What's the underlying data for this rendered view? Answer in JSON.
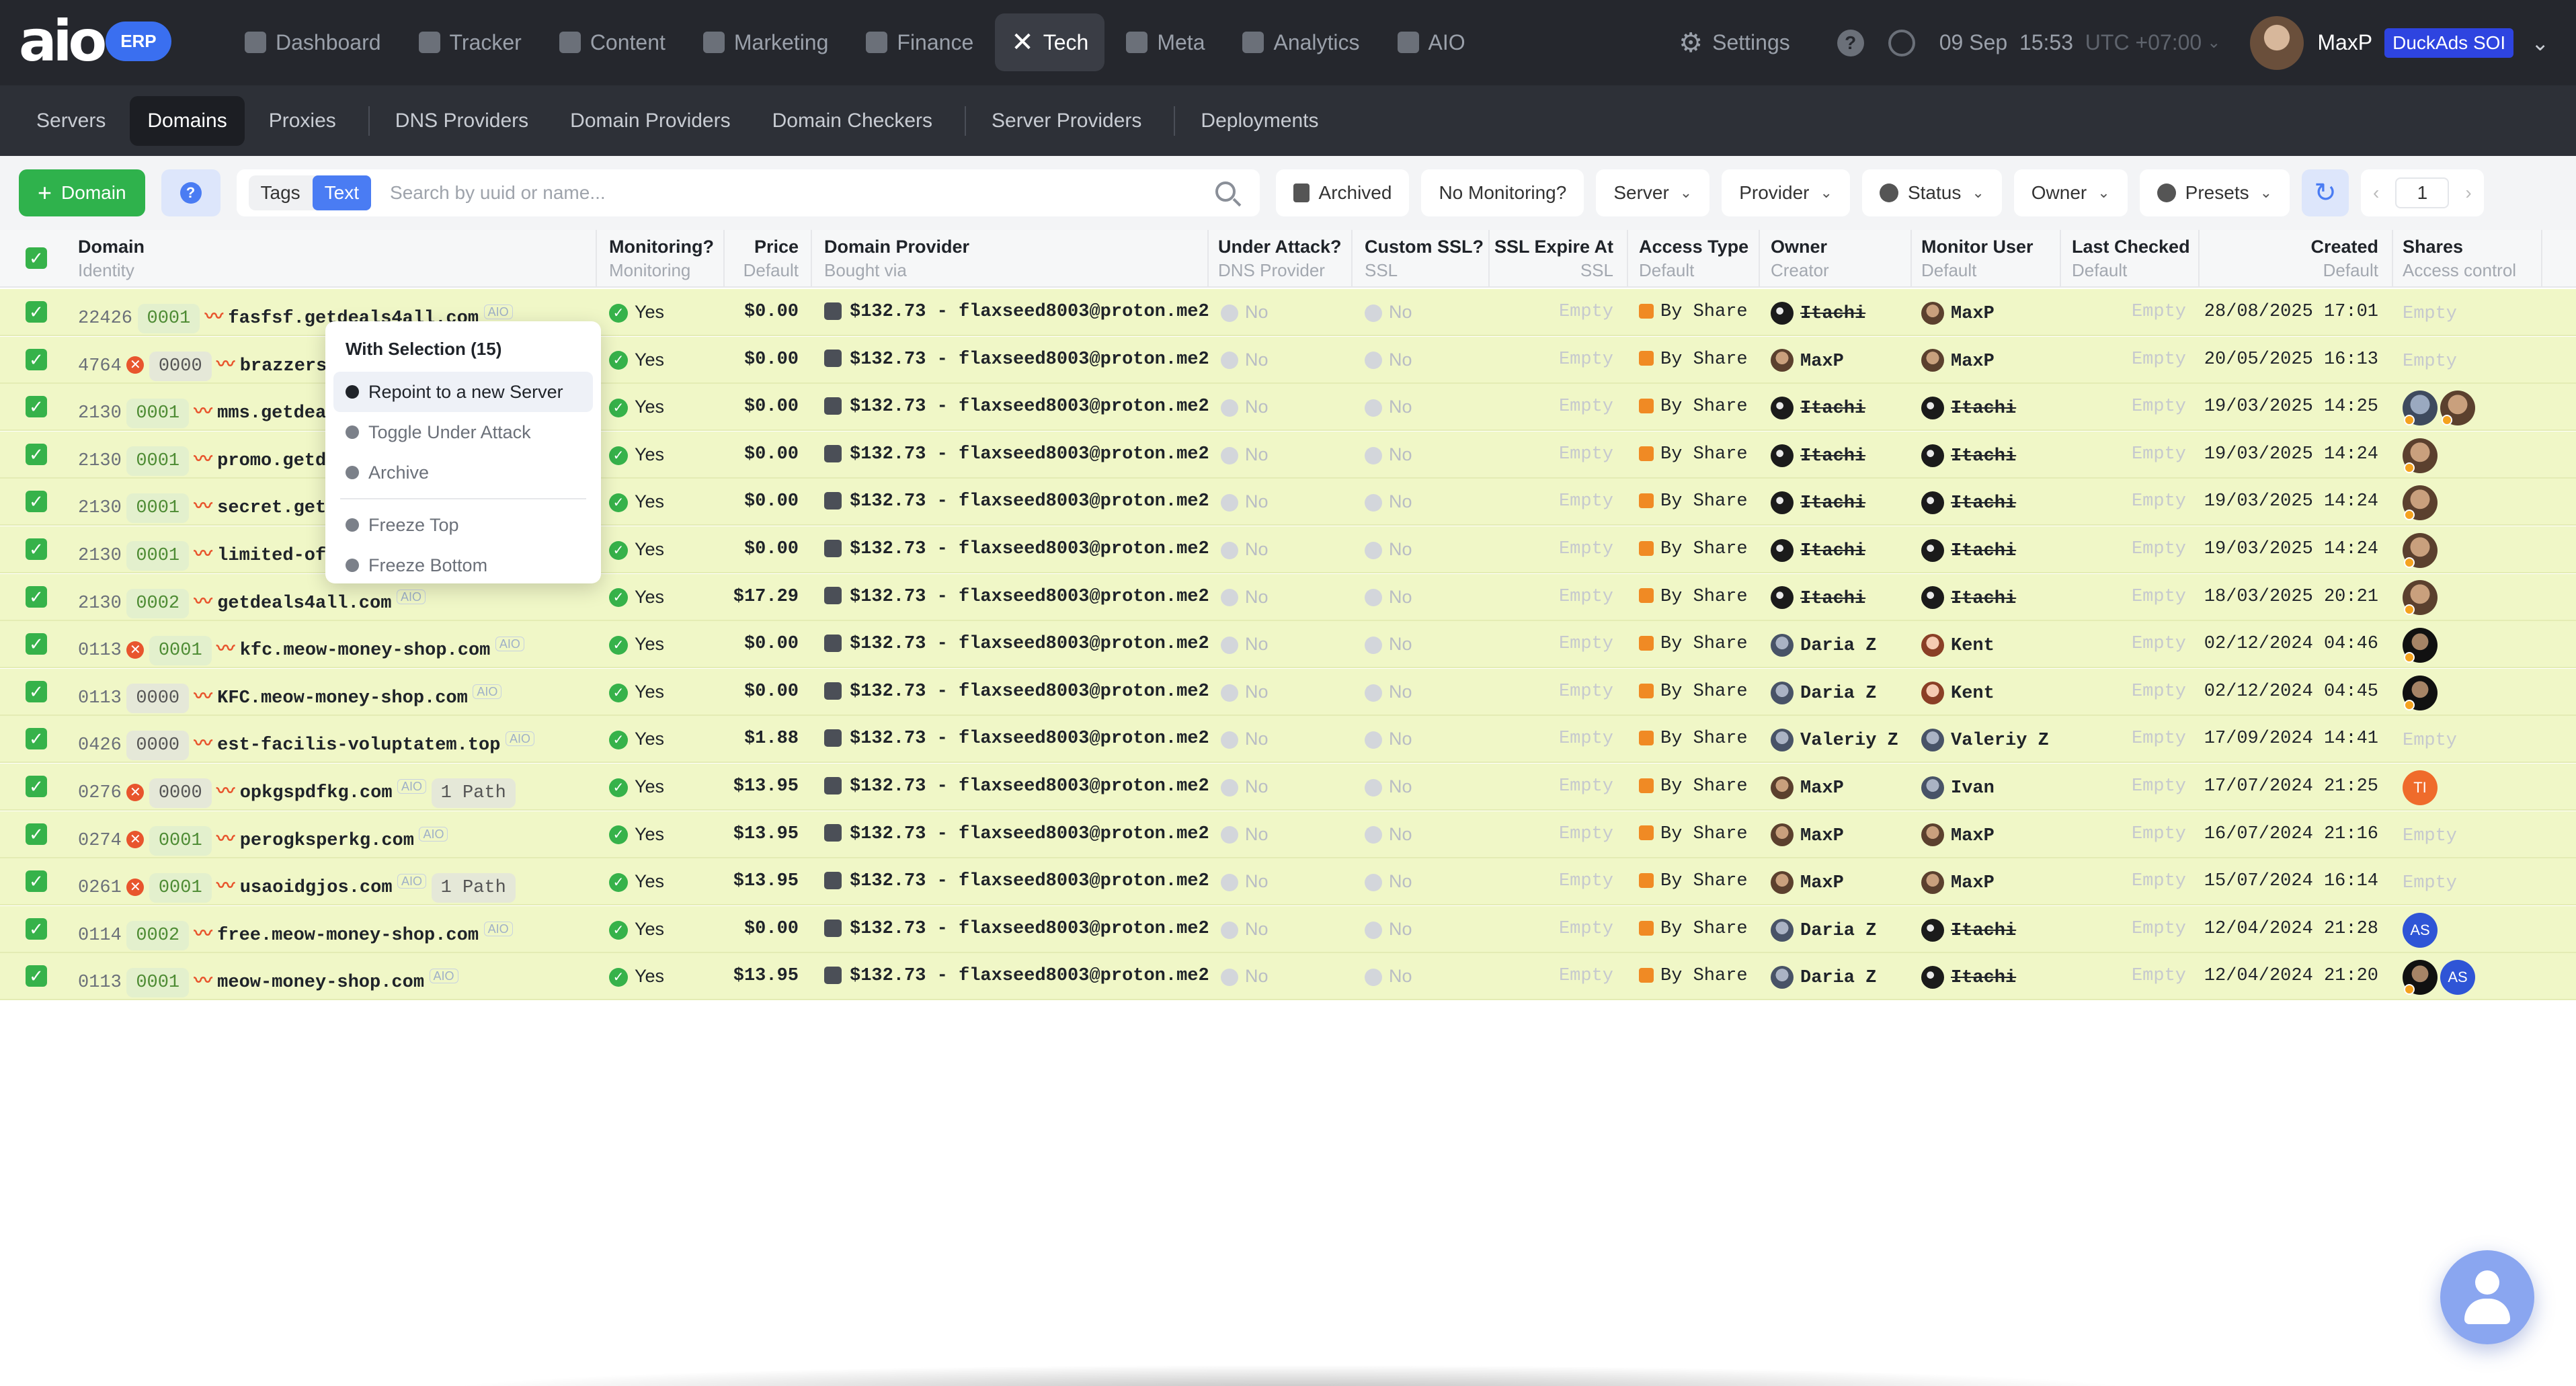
{
  "brand": {
    "logo_text": "aio",
    "badge": "ERP"
  },
  "nav": {
    "items": [
      {
        "label": "Dashboard",
        "icon": "dashboard-icon"
      },
      {
        "label": "Tracker",
        "icon": "tracker-icon"
      },
      {
        "label": "Content",
        "icon": "content-icon"
      },
      {
        "label": "Marketing",
        "icon": "marketing-icon"
      },
      {
        "label": "Finance",
        "icon": "finance-icon"
      },
      {
        "label": "Tech",
        "icon": "tools-icon",
        "active": true
      },
      {
        "label": "Meta",
        "icon": "meta-icon"
      },
      {
        "label": "Analytics",
        "icon": "analytics-icon"
      },
      {
        "label": "AIO",
        "icon": "aio-icon"
      }
    ],
    "settings": "Settings",
    "date": "09 Sep",
    "time": "15:53",
    "timezone": "UTC +07:00",
    "user_name": "MaxP",
    "user_badge": "DuckAds SOI"
  },
  "subnav": {
    "items": [
      "Servers",
      "Domains",
      "Proxies",
      "DNS Providers",
      "Domain Providers",
      "Domain Checkers",
      "Server Providers",
      "Deployments"
    ],
    "active": "Domains"
  },
  "toolbar": {
    "add_label": "Domain",
    "toggle_tags": "Tags",
    "toggle_text": "Text",
    "search_placeholder": "Search by uuid or name...",
    "archived": "Archived",
    "no_monitoring": "No Monitoring?",
    "server": "Server",
    "provider": "Provider",
    "status": "Status",
    "owner": "Owner",
    "presets": "Presets",
    "page": "1"
  },
  "table": {
    "columns": [
      {
        "title": "Domain",
        "sub": "Identity"
      },
      {
        "title": "Monitoring?",
        "sub": "Monitoring"
      },
      {
        "title": "Price",
        "sub": "Default"
      },
      {
        "title": "Domain Provider",
        "sub": "Bought via"
      },
      {
        "title": "Under Attack?",
        "sub": "DNS Provider"
      },
      {
        "title": "Custom SSL?",
        "sub": "SSL"
      },
      {
        "title": "SSL Expire At",
        "sub": "SSL"
      },
      {
        "title": "Access Type",
        "sub": "Default"
      },
      {
        "title": "Owner",
        "sub": "Creator"
      },
      {
        "title": "Monitor User",
        "sub": "Default"
      },
      {
        "title": "Last Checked",
        "sub": "Default"
      },
      {
        "title": "Created",
        "sub": "Default"
      },
      {
        "title": "Shares",
        "sub": "Access control"
      }
    ],
    "rows": [
      {
        "id": "22426",
        "err": false,
        "tag": "0001",
        "domain": "fasfsf.getdeals4all.com",
        "path": "",
        "monitoring": "Yes",
        "price": "$0.00",
        "provider": "$132.73 - flaxseed8003@proton.me2",
        "under_attack": "No",
        "custom_ssl": "No",
        "ssl_expire": "Empty",
        "access": "By Share",
        "owner": "Itachi",
        "owner_av": "dark",
        "owner_strike": true,
        "monitor": "MaxP",
        "monitor_av": "photo",
        "monitor_strike": false,
        "last_checked": "Empty",
        "created": "28/08/2025 17:01",
        "shares": [
          "empty"
        ]
      },
      {
        "id": "4764",
        "err": true,
        "tag": "0000",
        "domain": "brazzers.getdeals4all.com",
        "path": "",
        "monitoring": "Yes",
        "price": "$0.00",
        "provider": "$132.73 - flaxseed8003@proton.me2",
        "under_attack": "No",
        "custom_ssl": "No",
        "ssl_expire": "Empty",
        "access": "By Share",
        "owner": "MaxP",
        "owner_av": "photo",
        "owner_strike": false,
        "monitor": "MaxP",
        "monitor_av": "photo",
        "monitor_strike": false,
        "last_checked": "Empty",
        "created": "20/05/2025 16:13",
        "shares": [
          "empty"
        ]
      },
      {
        "id": "2130",
        "err": false,
        "tag": "0001",
        "domain": "mms.getdeals4all.com",
        "path": "",
        "monitoring": "Yes",
        "price": "$0.00",
        "provider": "$132.73 - flaxseed8003@proton.me2",
        "under_attack": "No",
        "custom_ssl": "No",
        "ssl_expire": "Empty",
        "access": "By Share",
        "owner": "Itachi",
        "owner_av": "dark",
        "owner_strike": true,
        "monitor": "Itachi",
        "monitor_av": "dark",
        "monitor_strike": true,
        "last_checked": "Empty",
        "created": "19/03/2025 14:25",
        "shares": [
          "a2",
          "a1"
        ]
      },
      {
        "id": "2130",
        "err": false,
        "tag": "0001",
        "domain": "promo.getdeals4all.com",
        "path": "",
        "monitoring": "Yes",
        "price": "$0.00",
        "provider": "$132.73 - flaxseed8003@proton.me2",
        "under_attack": "No",
        "custom_ssl": "No",
        "ssl_expire": "Empty",
        "access": "By Share",
        "owner": "Itachi",
        "owner_av": "dark",
        "owner_strike": true,
        "monitor": "Itachi",
        "monitor_av": "dark",
        "monitor_strike": true,
        "last_checked": "Empty",
        "created": "19/03/2025 14:24",
        "shares": [
          "a1"
        ]
      },
      {
        "id": "2130",
        "err": false,
        "tag": "0001",
        "domain": "secret.getdeals4all.com",
        "path": "",
        "monitoring": "Yes",
        "price": "$0.00",
        "provider": "$132.73 - flaxseed8003@proton.me2",
        "under_attack": "No",
        "custom_ssl": "No",
        "ssl_expire": "Empty",
        "access": "By Share",
        "owner": "Itachi",
        "owner_av": "dark",
        "owner_strike": true,
        "monitor": "Itachi",
        "monitor_av": "dark",
        "monitor_strike": true,
        "last_checked": "Empty",
        "created": "19/03/2025 14:24",
        "shares": [
          "a1"
        ]
      },
      {
        "id": "2130",
        "err": false,
        "tag": "0001",
        "domain": "limited-offer.getdeals4all.com",
        "path": "",
        "monitoring": "Yes",
        "price": "$0.00",
        "provider": "$132.73 - flaxseed8003@proton.me2",
        "under_attack": "No",
        "custom_ssl": "No",
        "ssl_expire": "Empty",
        "access": "By Share",
        "owner": "Itachi",
        "owner_av": "dark",
        "owner_strike": true,
        "monitor": "Itachi",
        "monitor_av": "dark",
        "monitor_strike": true,
        "last_checked": "Empty",
        "created": "19/03/2025 14:24",
        "shares": [
          "a1"
        ]
      },
      {
        "id": "2130",
        "err": false,
        "tag": "0002",
        "domain": "getdeals4all.com",
        "path": "",
        "monitoring": "Yes",
        "price": "$17.29",
        "provider": "$132.73 - flaxseed8003@proton.me2",
        "under_attack": "No",
        "custom_ssl": "No",
        "ssl_expire": "Empty",
        "access": "By Share",
        "owner": "Itachi",
        "owner_av": "dark",
        "owner_strike": true,
        "monitor": "Itachi",
        "monitor_av": "dark",
        "monitor_strike": true,
        "last_checked": "Empty",
        "created": "18/03/2025 20:21",
        "shares": [
          "a1"
        ]
      },
      {
        "id": "0113",
        "err": true,
        "tag": "0001",
        "domain": "kfc.meow-money-shop.com",
        "path": "",
        "monitoring": "Yes",
        "price": "$0.00",
        "provider": "$132.73 - flaxseed8003@proton.me2",
        "under_attack": "No",
        "custom_ssl": "No",
        "ssl_expire": "Empty",
        "access": "By Share",
        "owner": "Daria Z",
        "owner_av": "grey",
        "owner_strike": false,
        "monitor": "Kent",
        "monitor_av": "pink",
        "monitor_strike": false,
        "last_checked": "Empty",
        "created": "02/12/2024 04:46",
        "shares": [
          "black"
        ]
      },
      {
        "id": "0113",
        "err": false,
        "tag": "0000",
        "domain": "KFC.meow-money-shop.com",
        "path": "",
        "monitoring": "Yes",
        "price": "$0.00",
        "provider": "$132.73 - flaxseed8003@proton.me2",
        "under_attack": "No",
        "custom_ssl": "No",
        "ssl_expire": "Empty",
        "access": "By Share",
        "owner": "Daria Z",
        "owner_av": "grey",
        "owner_strike": false,
        "monitor": "Kent",
        "monitor_av": "pink",
        "monitor_strike": false,
        "last_checked": "Empty",
        "created": "02/12/2024 04:45",
        "shares": [
          "black"
        ]
      },
      {
        "id": "0426",
        "err": false,
        "tag": "0000",
        "domain": "est-facilis-voluptatem.top",
        "path": "",
        "monitoring": "Yes",
        "price": "$1.88",
        "provider": "$132.73 - flaxseed8003@proton.me2",
        "under_attack": "No",
        "custom_ssl": "No",
        "ssl_expire": "Empty",
        "access": "By Share",
        "owner": "Valeriy Z",
        "owner_av": "grey",
        "owner_strike": false,
        "monitor": "Valeriy Z",
        "monitor_av": "grey",
        "monitor_strike": false,
        "last_checked": "Empty",
        "created": "17/09/2024 14:41",
        "shares": [
          "empty"
        ]
      },
      {
        "id": "0276",
        "err": true,
        "tag": "0000",
        "domain": "opkgspdfkg.com",
        "path": "1 Path",
        "monitoring": "Yes",
        "price": "$13.95",
        "provider": "$132.73 - flaxseed8003@proton.me2",
        "under_attack": "No",
        "custom_ssl": "No",
        "ssl_expire": "Empty",
        "access": "By Share",
        "owner": "MaxP",
        "owner_av": "photo",
        "owner_strike": false,
        "monitor": "Ivan",
        "monitor_av": "grey",
        "monitor_strike": false,
        "last_checked": "Empty",
        "created": "17/07/2024 21:25",
        "shares": [
          "ti"
        ]
      },
      {
        "id": "0274",
        "err": true,
        "tag": "0001",
        "domain": "perogksperkg.com",
        "path": "",
        "monitoring": "Yes",
        "price": "$13.95",
        "provider": "$132.73 - flaxseed8003@proton.me2",
        "under_attack": "No",
        "custom_ssl": "No",
        "ssl_expire": "Empty",
        "access": "By Share",
        "owner": "MaxP",
        "owner_av": "photo",
        "owner_strike": false,
        "monitor": "MaxP",
        "monitor_av": "photo",
        "monitor_strike": false,
        "last_checked": "Empty",
        "created": "16/07/2024 21:16",
        "shares": [
          "empty"
        ]
      },
      {
        "id": "0261",
        "err": true,
        "tag": "0001",
        "domain": "usaoidgjos.com",
        "path": "1 Path",
        "monitoring": "Yes",
        "price": "$13.95",
        "provider": "$132.73 - flaxseed8003@proton.me2",
        "under_attack": "No",
        "custom_ssl": "No",
        "ssl_expire": "Empty",
        "access": "By Share",
        "owner": "MaxP",
        "owner_av": "photo",
        "owner_strike": false,
        "monitor": "MaxP",
        "monitor_av": "photo",
        "monitor_strike": false,
        "last_checked": "Empty",
        "created": "15/07/2024 16:14",
        "shares": [
          "empty"
        ]
      },
      {
        "id": "0114",
        "err": false,
        "tag": "0002",
        "domain": "free.meow-money-shop.com",
        "path": "",
        "monitoring": "Yes",
        "price": "$0.00",
        "provider": "$132.73 - flaxseed8003@proton.me2",
        "under_attack": "No",
        "custom_ssl": "No",
        "ssl_expire": "Empty",
        "access": "By Share",
        "owner": "Daria Z",
        "owner_av": "grey",
        "owner_strike": false,
        "monitor": "Itachi",
        "monitor_av": "dark",
        "monitor_strike": true,
        "last_checked": "Empty",
        "created": "12/04/2024 21:28",
        "shares": [
          "as"
        ]
      },
      {
        "id": "0113",
        "err": false,
        "tag": "0001",
        "domain": "meow-money-shop.com",
        "path": "",
        "monitoring": "Yes",
        "price": "$13.95",
        "provider": "$132.73 - flaxseed8003@proton.me2",
        "under_attack": "No",
        "custom_ssl": "No",
        "ssl_expire": "Empty",
        "access": "By Share",
        "owner": "Daria Z",
        "owner_av": "grey",
        "owner_strike": false,
        "monitor": "Itachi",
        "monitor_av": "dark",
        "monitor_strike": true,
        "last_checked": "Empty",
        "created": "12/04/2024 21:20",
        "shares": [
          "black",
          "as"
        ]
      }
    ],
    "aio_label": "AIO",
    "share_initials": {
      "ti": "TI",
      "as": "AS"
    }
  },
  "context_menu": {
    "title": "With Selection (15)",
    "items": [
      "Repoint to a new Server",
      "Toggle Under Attack",
      "Archive",
      "Freeze Top",
      "Freeze Bottom"
    ]
  },
  "colors": {
    "accent": "#4a7cf3",
    "add_green": "#2fb24c",
    "row_selected": "#f0f7c7",
    "error": "#e8552d"
  }
}
